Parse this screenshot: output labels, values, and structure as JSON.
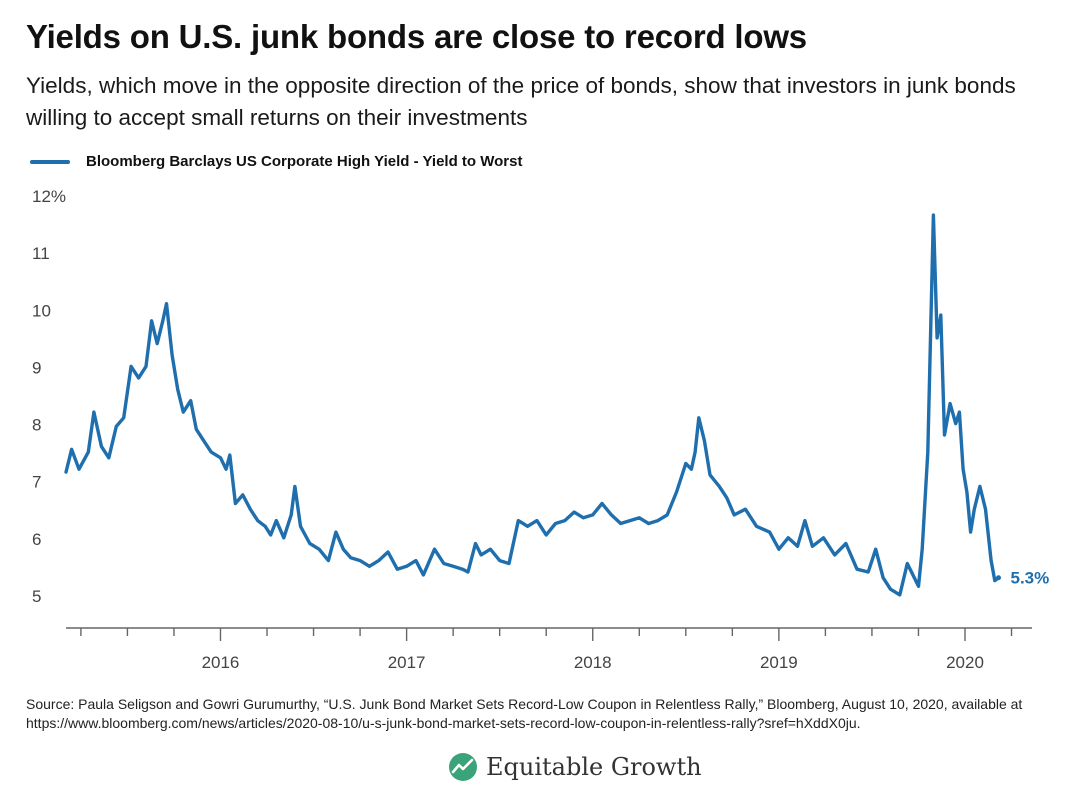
{
  "header": {
    "title": "Yields on U.S. junk bonds are close to record lows",
    "subtitle": "Yields, which move in the opposite direction of the price of bonds, show that investors in junk bonds willing to accept small returns on their investments"
  },
  "legend": {
    "label": "Bloomberg Barclays US Corporate High Yield - Yield to Worst",
    "color": "#1f6fae"
  },
  "chart_data": {
    "type": "line",
    "title": "Yields on U.S. junk bonds are close to record lows",
    "series": [
      {
        "name": "Bloomberg Barclays US Corporate High Yield - Yield to Worst",
        "color": "#1f6fae",
        "points": [
          [
            2015.17,
            7.15
          ],
          [
            2015.2,
            7.55
          ],
          [
            2015.24,
            7.2
          ],
          [
            2015.29,
            7.5
          ],
          [
            2015.32,
            8.2
          ],
          [
            2015.36,
            7.6
          ],
          [
            2015.4,
            7.4
          ],
          [
            2015.44,
            7.95
          ],
          [
            2015.48,
            8.1
          ],
          [
            2015.52,
            9.0
          ],
          [
            2015.56,
            8.8
          ],
          [
            2015.6,
            9.0
          ],
          [
            2015.63,
            9.8
          ],
          [
            2015.66,
            9.4
          ],
          [
            2015.69,
            9.8
          ],
          [
            2015.71,
            10.1
          ],
          [
            2015.74,
            9.2
          ],
          [
            2015.77,
            8.6
          ],
          [
            2015.8,
            8.2
          ],
          [
            2015.84,
            8.4
          ],
          [
            2015.87,
            7.9
          ],
          [
            2015.91,
            7.7
          ],
          [
            2015.95,
            7.5
          ],
          [
            2016.0,
            7.4
          ],
          [
            2016.03,
            7.2
          ],
          [
            2016.05,
            7.45
          ],
          [
            2016.08,
            6.6
          ],
          [
            2016.12,
            6.75
          ],
          [
            2016.16,
            6.5
          ],
          [
            2016.2,
            6.3
          ],
          [
            2016.24,
            6.2
          ],
          [
            2016.27,
            6.05
          ],
          [
            2016.3,
            6.3
          ],
          [
            2016.34,
            6.0
          ],
          [
            2016.38,
            6.4
          ],
          [
            2016.4,
            6.9
          ],
          [
            2016.43,
            6.2
          ],
          [
            2016.48,
            5.9
          ],
          [
            2016.53,
            5.8
          ],
          [
            2016.58,
            5.6
          ],
          [
            2016.62,
            6.1
          ],
          [
            2016.66,
            5.8
          ],
          [
            2016.7,
            5.65
          ],
          [
            2016.75,
            5.6
          ],
          [
            2016.8,
            5.5
          ],
          [
            2016.85,
            5.6
          ],
          [
            2016.9,
            5.75
          ],
          [
            2016.95,
            5.45
          ],
          [
            2017.0,
            5.5
          ],
          [
            2017.05,
            5.6
          ],
          [
            2017.09,
            5.35
          ],
          [
            2017.15,
            5.8
          ],
          [
            2017.2,
            5.55
          ],
          [
            2017.25,
            5.5
          ],
          [
            2017.3,
            5.45
          ],
          [
            2017.33,
            5.4
          ],
          [
            2017.37,
            5.9
          ],
          [
            2017.4,
            5.7
          ],
          [
            2017.45,
            5.8
          ],
          [
            2017.5,
            5.6
          ],
          [
            2017.55,
            5.55
          ],
          [
            2017.6,
            6.3
          ],
          [
            2017.65,
            6.2
          ],
          [
            2017.7,
            6.3
          ],
          [
            2017.75,
            6.05
          ],
          [
            2017.8,
            6.25
          ],
          [
            2017.85,
            6.3
          ],
          [
            2017.9,
            6.45
          ],
          [
            2017.95,
            6.35
          ],
          [
            2018.0,
            6.4
          ],
          [
            2018.05,
            6.6
          ],
          [
            2018.1,
            6.4
          ],
          [
            2018.15,
            6.25
          ],
          [
            2018.2,
            6.3
          ],
          [
            2018.25,
            6.35
          ],
          [
            2018.3,
            6.25
          ],
          [
            2018.35,
            6.3
          ],
          [
            2018.4,
            6.4
          ],
          [
            2018.45,
            6.8
          ],
          [
            2018.5,
            7.3
          ],
          [
            2018.53,
            7.2
          ],
          [
            2018.55,
            7.5
          ],
          [
            2018.57,
            8.1
          ],
          [
            2018.6,
            7.7
          ],
          [
            2018.63,
            7.1
          ],
          [
            2018.68,
            6.9
          ],
          [
            2018.72,
            6.7
          ],
          [
            2018.76,
            6.4
          ],
          [
            2018.82,
            6.5
          ],
          [
            2018.88,
            6.2
          ],
          [
            2018.95,
            6.1
          ],
          [
            2019.0,
            5.8
          ],
          [
            2019.05,
            6.0
          ],
          [
            2019.1,
            5.85
          ],
          [
            2019.14,
            6.3
          ],
          [
            2019.18,
            5.85
          ],
          [
            2019.24,
            6.0
          ],
          [
            2019.3,
            5.7
          ],
          [
            2019.36,
            5.9
          ],
          [
            2019.42,
            5.45
          ],
          [
            2019.48,
            5.4
          ],
          [
            2019.52,
            5.8
          ],
          [
            2019.56,
            5.3
          ],
          [
            2019.6,
            5.1
          ],
          [
            2019.65,
            5.0
          ],
          [
            2019.69,
            5.55
          ],
          [
            2019.72,
            5.35
          ],
          [
            2019.75,
            5.15
          ],
          [
            2019.77,
            5.8
          ],
          [
            2019.8,
            7.5
          ],
          [
            2019.83,
            11.65
          ],
          [
            2019.85,
            9.5
          ],
          [
            2019.87,
            9.9
          ],
          [
            2019.89,
            7.8
          ],
          [
            2019.92,
            8.35
          ],
          [
            2019.95,
            8.0
          ],
          [
            2019.97,
            8.2
          ],
          [
            2019.99,
            7.2
          ],
          [
            2020.01,
            6.8
          ],
          [
            2020.03,
            6.1
          ],
          [
            2020.05,
            6.5
          ],
          [
            2020.08,
            6.9
          ],
          [
            2020.11,
            6.5
          ],
          [
            2020.14,
            5.6
          ],
          [
            2020.16,
            5.25
          ],
          [
            2020.18,
            5.3
          ]
        ]
      }
    ],
    "y_ticks": [
      "12%",
      "11",
      "10",
      "9",
      "8",
      "7",
      "6",
      "5"
    ],
    "y_tick_values": [
      12,
      11,
      10,
      9,
      8,
      7,
      6,
      5
    ],
    "x_labels": [
      "2016",
      "2017",
      "2018",
      "2019",
      "2020"
    ],
    "x_label_values": [
      2016,
      2017,
      2018,
      2019,
      2020
    ],
    "ylim": [
      4.7,
      12.3
    ],
    "xlim": [
      2015.17,
      2020.36
    ],
    "end_label": "5.3%",
    "grid": false,
    "legend_position": "top-left"
  },
  "footer": {
    "source_line1": "Source: Paula Seligson and Gowri Gurumurthy, “U.S. Junk Bond Market Sets Record-Low Coupon in Relentless Rally,” Bloomberg, August 10, 2020, available at",
    "source_line2": "https://www.bloomberg.com/news/articles/2020-08-10/u-s-junk-bond-market-sets-record-low-coupon-in-relentless-rally?sref=hXddX0ju.",
    "logo_text": "Equitable Growth",
    "logo_icon": "growth-chart-icon",
    "logo_color": "#3aa37a"
  }
}
